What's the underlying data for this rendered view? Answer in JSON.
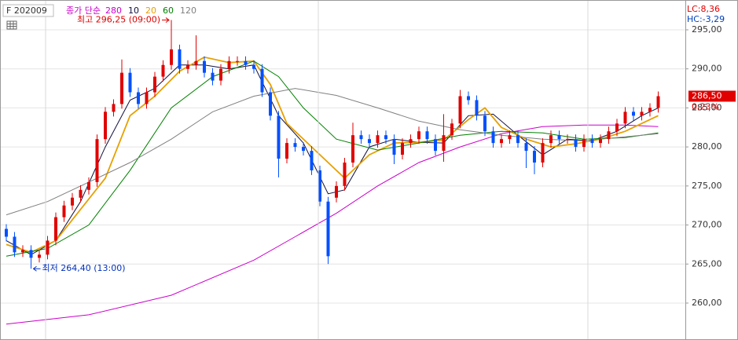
{
  "chart_data": {
    "type": "candlestick",
    "title": "F 202009",
    "ma_label": "종가 단순",
    "ylim": [
      255.27,
      298.82
    ],
    "yticks": [
      {
        "value": 260,
        "label": "260,00"
      },
      {
        "value": 265,
        "label": "265,00"
      },
      {
        "value": 270,
        "label": "270,00"
      },
      {
        "value": 275,
        "label": "275,00"
      },
      {
        "value": 280,
        "label": "280,00"
      },
      {
        "value": 285,
        "label": "285,00"
      },
      {
        "value": 290,
        "label": "290,00"
      },
      {
        "value": 295,
        "label": "295,00"
      }
    ],
    "grid": true,
    "up_color": "#e00000",
    "down_color": "#0050ff",
    "open": [
      269.5,
      268.5,
      266.5,
      266.8,
      265.8,
      266.2,
      268,
      271,
      272.5,
      273.5,
      274.5,
      275.5,
      281,
      284.5,
      285.5,
      289.5,
      287,
      285.5,
      287,
      289,
      290.5,
      292.5,
      290,
      290.5,
      291,
      289.5,
      288.5,
      290,
      291,
      291,
      290.5,
      290,
      287,
      284,
      278.5,
      280.5,
      280,
      279.5,
      277,
      273,
      273.5,
      275,
      278,
      281.5,
      281,
      280.5,
      281.5,
      281,
      279,
      280.5,
      281,
      282,
      281,
      279.5,
      281.5,
      283,
      286.5,
      286,
      284,
      282,
      280.5,
      281,
      281.5,
      280.5,
      279.5,
      278,
      280.5,
      281.5,
      281,
      281,
      280,
      281,
      280.5,
      281,
      282,
      283,
      284.5,
      284,
      284.5,
      285
    ],
    "high": [
      270.1,
      269.1,
      267.4,
      267.4,
      266.8,
      268.6,
      271.6,
      273.1,
      274.1,
      275.1,
      276.1,
      281.6,
      285.1,
      286.1,
      291.2,
      290.1,
      287.6,
      287.6,
      289.6,
      291.1,
      296.25,
      293.1,
      291.1,
      294.3,
      291.6,
      290.1,
      290.6,
      291.6,
      291.6,
      291.6,
      291.1,
      290.6,
      287.6,
      284.6,
      281.1,
      281.1,
      280.6,
      280.1,
      277.6,
      273.6,
      275.6,
      278.6,
      283.1,
      282.1,
      281.6,
      282.1,
      282.1,
      281.6,
      281.1,
      281.6,
      282.6,
      282.6,
      281.6,
      284.2,
      283.6,
      287.3,
      287.1,
      286.6,
      284.6,
      282.6,
      281.6,
      282.1,
      282.1,
      281.1,
      280.1,
      281.1,
      282.1,
      282.1,
      281.6,
      281.6,
      281.6,
      281.6,
      281.6,
      282.6,
      283.6,
      285.1,
      285.1,
      285.1,
      285.6,
      287.1
    ],
    "low": [
      267.9,
      265.9,
      265.9,
      264.4,
      265.2,
      265.6,
      267.4,
      270.4,
      271.9,
      272.9,
      273.9,
      274.9,
      280.4,
      283.9,
      284.9,
      286.4,
      284.9,
      284.9,
      286.4,
      288.4,
      289.9,
      289.4,
      289.4,
      289.9,
      288.9,
      287.9,
      287.9,
      289.4,
      290.4,
      289.9,
      289.4,
      286.4,
      283.4,
      276.1,
      277.9,
      279.4,
      278.9,
      276.4,
      272.4,
      265,
      272.9,
      274.4,
      277.4,
      280.4,
      279.9,
      279.9,
      280.4,
      277.8,
      278.4,
      279.9,
      280.4,
      280.4,
      278.9,
      278.1,
      280.9,
      282.4,
      285.4,
      283.4,
      281.4,
      279.9,
      279.9,
      280.4,
      279.9,
      277.3,
      276.5,
      277.4,
      279.9,
      280.4,
      280.4,
      279.4,
      279.4,
      279.9,
      279.9,
      280.4,
      281.4,
      282.4,
      283.4,
      283.4,
      283.9,
      284.4
    ],
    "close": [
      268.5,
      266.5,
      266.8,
      265.8,
      266.2,
      268,
      271,
      272.5,
      273.5,
      274.5,
      275.5,
      281,
      284.5,
      285.5,
      289.5,
      287,
      285.5,
      287,
      289,
      290.5,
      292.5,
      290,
      290.5,
      291,
      289.5,
      288.5,
      290,
      291,
      291,
      290.5,
      290,
      287,
      284,
      278.5,
      280.5,
      280,
      279.5,
      277,
      273,
      266,
      275,
      278,
      281.5,
      281,
      280.5,
      281.5,
      281,
      279,
      280.5,
      281,
      282,
      281,
      279.5,
      281.5,
      283,
      286.5,
      286,
      284,
      282,
      280.5,
      281,
      281.5,
      280.5,
      279.5,
      278,
      280.5,
      281.5,
      281,
      281,
      280,
      281,
      280.5,
      281,
      282,
      283,
      284.5,
      284,
      284.5,
      285,
      286.5
    ],
    "series": [
      {
        "name": "280",
        "color": "#cc00cc",
        "x": [
          0,
          10,
          20,
          30,
          35,
          40,
          45,
          50,
          55,
          60,
          65,
          70,
          75,
          79
        ],
        "values": [
          257.3,
          258.5,
          261,
          265.5,
          268.5,
          271.5,
          275,
          278,
          280,
          281.7,
          282.6,
          282.8,
          282.8,
          282.6
        ]
      },
      {
        "name": "10",
        "color": "#101040",
        "x": [
          0,
          3,
          6,
          9,
          12,
          15,
          18,
          21,
          24,
          27,
          30,
          33,
          36,
          39,
          41,
          44,
          47,
          50,
          53,
          56,
          59,
          62,
          65,
          68,
          71,
          74,
          77,
          79
        ],
        "values": [
          268,
          266.2,
          268,
          273,
          280,
          286,
          287.5,
          290.5,
          290.5,
          290,
          290.5,
          284,
          280.5,
          274,
          274.5,
          280,
          281,
          280.6,
          280.5,
          284,
          284.2,
          281.5,
          279,
          281,
          280.8,
          282,
          284,
          285
        ]
      },
      {
        "name": "20",
        "color": "#e6a000",
        "x": [
          0,
          3,
          6,
          9,
          12,
          15,
          18,
          21,
          24,
          27,
          30,
          32,
          34,
          37,
          39,
          41,
          44,
          47,
          50,
          53,
          56,
          58,
          60,
          63,
          66,
          69,
          72,
          75,
          79
        ],
        "values": [
          267.5,
          266.5,
          268,
          272,
          276,
          284,
          286.5,
          289.7,
          291.5,
          290.8,
          291,
          288,
          283,
          280,
          278,
          276,
          279,
          280.5,
          280.6,
          280.9,
          283.5,
          285,
          282.5,
          281,
          280,
          280.4,
          281,
          282,
          284
        ]
      },
      {
        "name": "60",
        "color": "#008000",
        "x": [
          0,
          5,
          10,
          15,
          20,
          25,
          30,
          33,
          36,
          40,
          45,
          50,
          55,
          60,
          65,
          70,
          75,
          79
        ],
        "values": [
          266,
          267,
          270,
          277,
          285,
          289,
          291,
          289,
          285,
          281,
          279.6,
          280.5,
          281.5,
          282,
          281.8,
          281,
          281.2,
          281.8
        ]
      },
      {
        "name": "120",
        "color": "#808080",
        "x": [
          0,
          5,
          10,
          15,
          20,
          25,
          30,
          35,
          40,
          45,
          50,
          55,
          60,
          65,
          70,
          75,
          79
        ],
        "values": [
          271.3,
          273,
          275.5,
          278,
          281,
          284.5,
          286.5,
          287.5,
          286.6,
          285,
          283.3,
          282.2,
          281.5,
          281,
          280.8,
          281.3,
          281.7
        ]
      }
    ],
    "annotations": [
      {
        "text": "최고 296,25 (09:00)",
        "value": 296.25,
        "color": "#e00000"
      },
      {
        "text": "최저 264,40 (13:00)",
        "value": 264.4,
        "color": "#0030c0"
      }
    ],
    "lc_label": "LC:8,36",
    "hc_label": "HC:-3,29",
    "last": {
      "value": 286.5,
      "label": "286,50"
    },
    "change_label": "0,23%"
  }
}
